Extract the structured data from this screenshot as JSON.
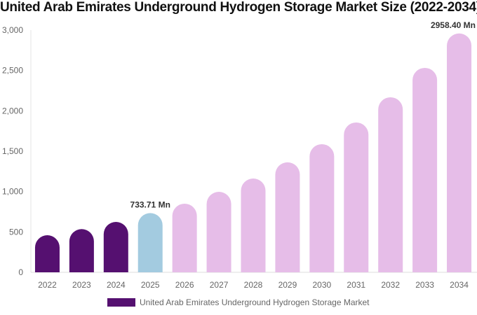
{
  "chart_data": {
    "type": "bar",
    "title": "United Arab Emirates Underground Hydrogen Storage Market Size (2022-2034)",
    "categories": [
      "2022",
      "2023",
      "2024",
      "2025",
      "2026",
      "2027",
      "2028",
      "2029",
      "2030",
      "2031",
      "2032",
      "2033",
      "2034"
    ],
    "series": [
      {
        "name": "United Arab Emirates Underground Hydrogen Storage Market",
        "values": [
          459,
          535,
          624,
          733.71,
          850,
          997,
          1162,
          1362,
          1587,
          1856,
          2168,
          2532,
          2958.4
        ]
      }
    ],
    "ylim": [
      0,
      3000
    ],
    "yticks": [
      "0",
      "500",
      "1,000",
      "1,500",
      "2,000",
      "2,500",
      "3,000"
    ],
    "grid": false,
    "legend_position": "bottom",
    "data_labels": [
      {
        "category": "2025",
        "text": "733.71 Mn"
      },
      {
        "category": "2034",
        "text": "2958.40 Mn"
      }
    ],
    "colors": {
      "historical": "#551070",
      "current": "#a3cbe0",
      "forecast": "#e6bde8"
    },
    "color_by_category": [
      "historical",
      "historical",
      "historical",
      "current",
      "forecast",
      "forecast",
      "forecast",
      "forecast",
      "forecast",
      "forecast",
      "forecast",
      "forecast",
      "forecast"
    ]
  }
}
